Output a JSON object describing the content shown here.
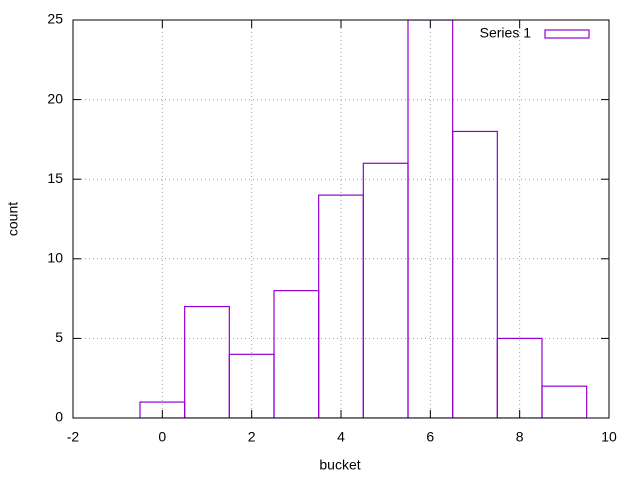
{
  "chart_data": {
    "type": "histogram",
    "bins": [
      -0.5,
      0.5,
      1.5,
      2.5,
      3.5,
      4.5,
      5.5,
      6.5,
      7.5,
      8.5,
      9.5
    ],
    "series": [
      {
        "name": "Series 1",
        "color": "#9400d3",
        "values": [
          1,
          7,
          4,
          8,
          14,
          16,
          25,
          18,
          5,
          2
        ]
      }
    ],
    "xlabel": "bucket",
    "ylabel": "count",
    "xlim": [
      -2,
      10
    ],
    "xticks": [
      -2,
      0,
      2,
      4,
      6,
      8,
      10
    ],
    "ylim": [
      0,
      25
    ],
    "yticks": [
      0,
      5,
      10,
      15,
      20,
      25
    ],
    "grid": true,
    "legend": "top-right"
  }
}
